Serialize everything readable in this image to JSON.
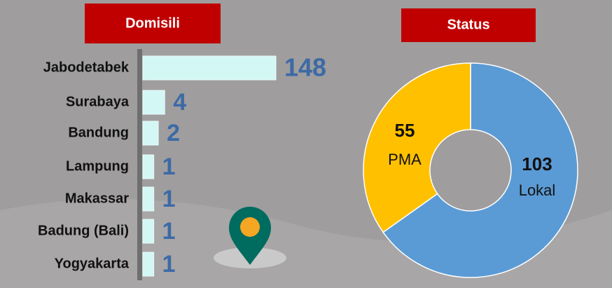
{
  "chart_data": [
    {
      "type": "bar",
      "title": "Domisili",
      "categories": [
        "Jabodetabek",
        "Surabaya",
        "Bandung",
        "Lampung",
        "Makassar",
        "Badung (Bali)",
        "Yogyakarta"
      ],
      "values": [
        148,
        4,
        2,
        1,
        1,
        1,
        1
      ],
      "color": "#d3f7f4"
    },
    {
      "type": "pie",
      "title": "Status",
      "categories": [
        "PMA",
        "Lokal"
      ],
      "values": [
        55,
        103
      ],
      "colors": [
        "#ffc000",
        "#5b9bd5"
      ]
    }
  ]
}
